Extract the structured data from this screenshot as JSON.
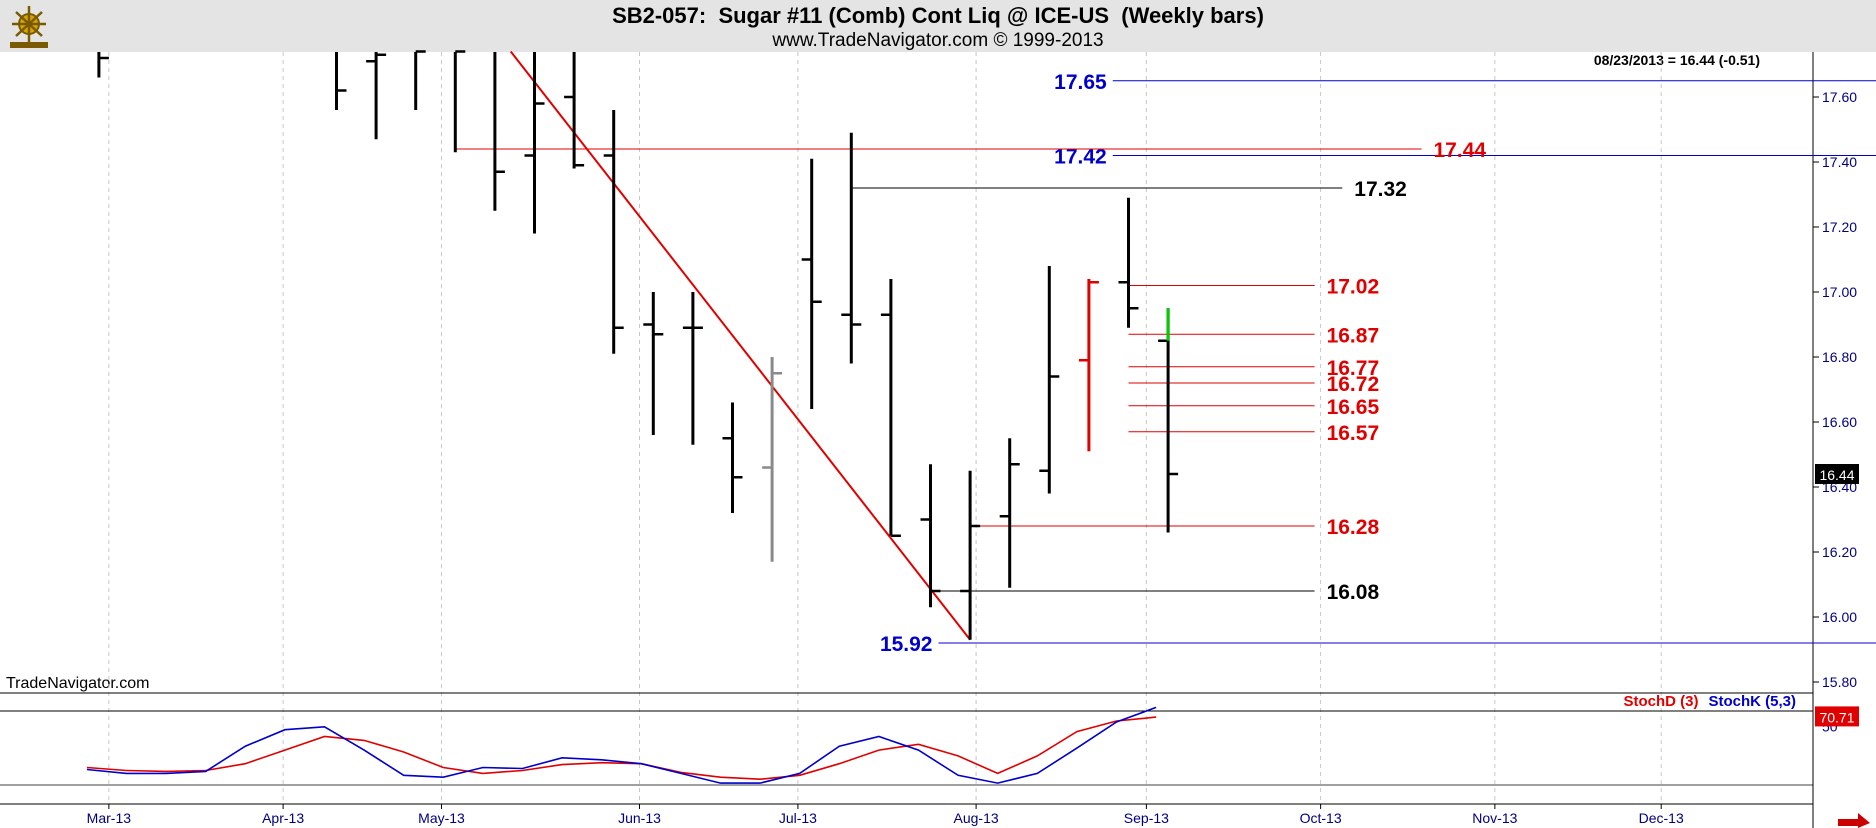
{
  "header": {
    "title": "SB2-057:  Sugar #11 (Comb) Cont Liq @ ICE-US  (Weekly bars)",
    "subtitle": "www.TradeNavigator.com © 1999-2013"
  },
  "watermark": "TradeNavigator.com",
  "last_price_text": "08/23/2013 = 16.44 (-0.51)",
  "price_box": "16.44",
  "stoch_box": "70.71",
  "colors": {
    "bar": "#000000",
    "grey_bar": "#8a8a8a",
    "red": "#e00000",
    "blue": "#0000cc",
    "green": "#00cc00",
    "grid": "#c8c8c8"
  },
  "chart_data": [
    {
      "type": "ohlc",
      "title": "SB2-057:  Sugar #11 (Comb) Cont Liq @ ICE-US  (Weekly bars)",
      "x_ticks": [
        "Mar-13",
        "Apr-13",
        "May-13",
        "Jun-13",
        "Jul-13",
        "Aug-13",
        "Sep-13",
        "Oct-13",
        "Nov-13",
        "Dec-13"
      ],
      "y_ticks": [
        15.8,
        16.0,
        16.2,
        16.4,
        16.6,
        16.8,
        17.0,
        17.2,
        17.4,
        17.6
      ],
      "ylim": [
        15.72,
        17.74
      ],
      "grid": "vertical",
      "bars": [
        {
          "wk": -1,
          "o": null,
          "h": 17.74,
          "l": 17.66,
          "c": 17.72
        },
        {
          "wk": 5,
          "o": null,
          "h": 17.74,
          "l": 17.56,
          "c": 17.62
        },
        {
          "wk": 6,
          "o": 17.71,
          "h": 17.74,
          "l": 17.47,
          "c": 17.73
        },
        {
          "wk": 7,
          "o": null,
          "h": 17.74,
          "l": 17.56,
          "c": 17.74
        },
        {
          "wk": 8,
          "o": null,
          "h": 17.74,
          "l": 17.43,
          "c": 17.74
        },
        {
          "wk": 9,
          "o": null,
          "h": 17.74,
          "l": 17.25,
          "c": 17.37
        },
        {
          "wk": 10,
          "o": 17.42,
          "h": 17.74,
          "l": 17.18,
          "c": 17.58
        },
        {
          "wk": 11,
          "o": 17.6,
          "h": 17.74,
          "l": 17.38,
          "c": 17.39
        },
        {
          "wk": 12,
          "o": 17.42,
          "h": 17.56,
          "l": 16.81,
          "c": 16.89
        },
        {
          "wk": 13,
          "o": 16.9,
          "h": 17.0,
          "l": 16.56,
          "c": 16.87
        },
        {
          "wk": 14,
          "o": 16.89,
          "h": 17.0,
          "l": 16.53,
          "c": 16.89
        },
        {
          "wk": 15,
          "o": 16.55,
          "h": 16.66,
          "l": 16.32,
          "c": 16.43
        },
        {
          "wk": 16,
          "o": 16.46,
          "h": 16.8,
          "l": 16.17,
          "c": 16.75,
          "grey": true
        },
        {
          "wk": 17,
          "o": 17.1,
          "h": 17.41,
          "l": 16.64,
          "c": 16.97
        },
        {
          "wk": 18,
          "o": 16.93,
          "h": 17.49,
          "l": 16.78,
          "c": 16.9
        },
        {
          "wk": 19,
          "o": 16.93,
          "h": 17.04,
          "l": 16.25,
          "c": 16.25
        },
        {
          "wk": 20,
          "o": 16.3,
          "h": 16.47,
          "l": 16.03,
          "c": 16.08
        },
        {
          "wk": 21,
          "o": 16.08,
          "h": 16.45,
          "l": 15.93,
          "c": 16.28
        },
        {
          "wk": 22,
          "o": 16.31,
          "h": 16.55,
          "l": 16.09,
          "c": 16.47
        },
        {
          "wk": 23,
          "o": 16.45,
          "h": 17.08,
          "l": 16.38,
          "c": 16.74
        },
        {
          "wk": 24,
          "o": 16.79,
          "h": 17.04,
          "l": 16.51,
          "c": 17.03,
          "red": true
        },
        {
          "wk": 25,
          "o": 17.03,
          "h": 17.29,
          "l": 16.89,
          "c": 16.95
        },
        {
          "wk": 26,
          "o": 16.85,
          "h": 16.95,
          "l": 16.26,
          "c": 16.44,
          "green_top": 16.85
        }
      ],
      "levels": [
        {
          "value": 17.65,
          "label": "17.65",
          "color": "blue",
          "side": "left",
          "from_wk": 24.4,
          "to_wk": 44
        },
        {
          "value": 17.42,
          "label": "17.42",
          "color": "blue",
          "side": "left",
          "from_wk": 24.4,
          "to_wk": 44
        },
        {
          "value": 17.44,
          "label": "17.44",
          "color": "red",
          "side": "right",
          "from_wk": 8,
          "to_wk": 32.5
        },
        {
          "value": 17.32,
          "label": "17.32",
          "color": "black",
          "side": "right",
          "from_wk": 18,
          "to_wk": 30.5
        },
        {
          "value": 17.02,
          "label": "17.02",
          "color": "red",
          "side": "right",
          "from_wk": 25,
          "to_wk": 29.8
        },
        {
          "value": 16.87,
          "label": "16.87",
          "color": "red",
          "side": "right",
          "from_wk": 25,
          "to_wk": 29.8
        },
        {
          "value": 16.77,
          "label": "16.77",
          "color": "red",
          "side": "right",
          "from_wk": 25,
          "to_wk": 29.8
        },
        {
          "value": 16.72,
          "label": "16.72",
          "color": "red",
          "side": "right",
          "from_wk": 25,
          "to_wk": 29.8
        },
        {
          "value": 16.65,
          "label": "16.65",
          "color": "red",
          "side": "right",
          "from_wk": 25,
          "to_wk": 29.8
        },
        {
          "value": 16.57,
          "label": "16.57",
          "color": "red",
          "side": "right",
          "from_wk": 25,
          "to_wk": 29.8
        },
        {
          "value": 16.28,
          "label": "16.28",
          "color": "red",
          "side": "right",
          "from_wk": 21,
          "to_wk": 29.8
        },
        {
          "value": 16.08,
          "label": "16.08",
          "color": "black",
          "side": "right",
          "from_wk": 20,
          "to_wk": 29.8
        },
        {
          "value": 15.92,
          "label": "15.92",
          "color": "blue",
          "side": "left",
          "from_wk": 20,
          "to_wk": 44
        }
      ],
      "trendline": {
        "x1_wk": 9.4,
        "y1": 17.74,
        "x2_wk": 21,
        "y2": 15.93
      }
    },
    {
      "type": "line",
      "title": "",
      "legend": [
        "StochD (3)",
        "StochK (5,3)"
      ],
      "y_ticks": [
        50
      ],
      "ylim": [
        0,
        100
      ],
      "series": [
        {
          "name": "StochD (3)",
          "color": "red",
          "wk": [
            -1,
            0,
            1,
            2,
            3,
            4,
            5,
            6,
            7,
            8,
            9,
            10,
            11,
            12,
            13,
            14,
            15,
            16,
            17,
            18,
            19,
            20,
            21,
            22,
            23,
            24,
            25,
            26
          ],
          "values": [
            18,
            15,
            14,
            15,
            22,
            36,
            50,
            46,
            34,
            18,
            12,
            15,
            21,
            23,
            22,
            13,
            8,
            6,
            10,
            22,
            36,
            42,
            30,
            12,
            30,
            55,
            66,
            70
          ]
        },
        {
          "name": "StochK (5,3)",
          "color": "blue",
          "wk": [
            -1,
            0,
            1,
            2,
            3,
            4,
            5,
            6,
            7,
            8,
            9,
            10,
            11,
            12,
            13,
            14,
            15,
            16,
            17,
            18,
            19,
            20,
            21,
            22,
            23,
            24,
            25,
            26
          ],
          "values": [
            16,
            12,
            12,
            14,
            40,
            57,
            60,
            36,
            10,
            8,
            18,
            17,
            28,
            26,
            22,
            12,
            2,
            2,
            12,
            40,
            50,
            36,
            10,
            2,
            12,
            38,
            65,
            80
          ]
        }
      ]
    }
  ]
}
